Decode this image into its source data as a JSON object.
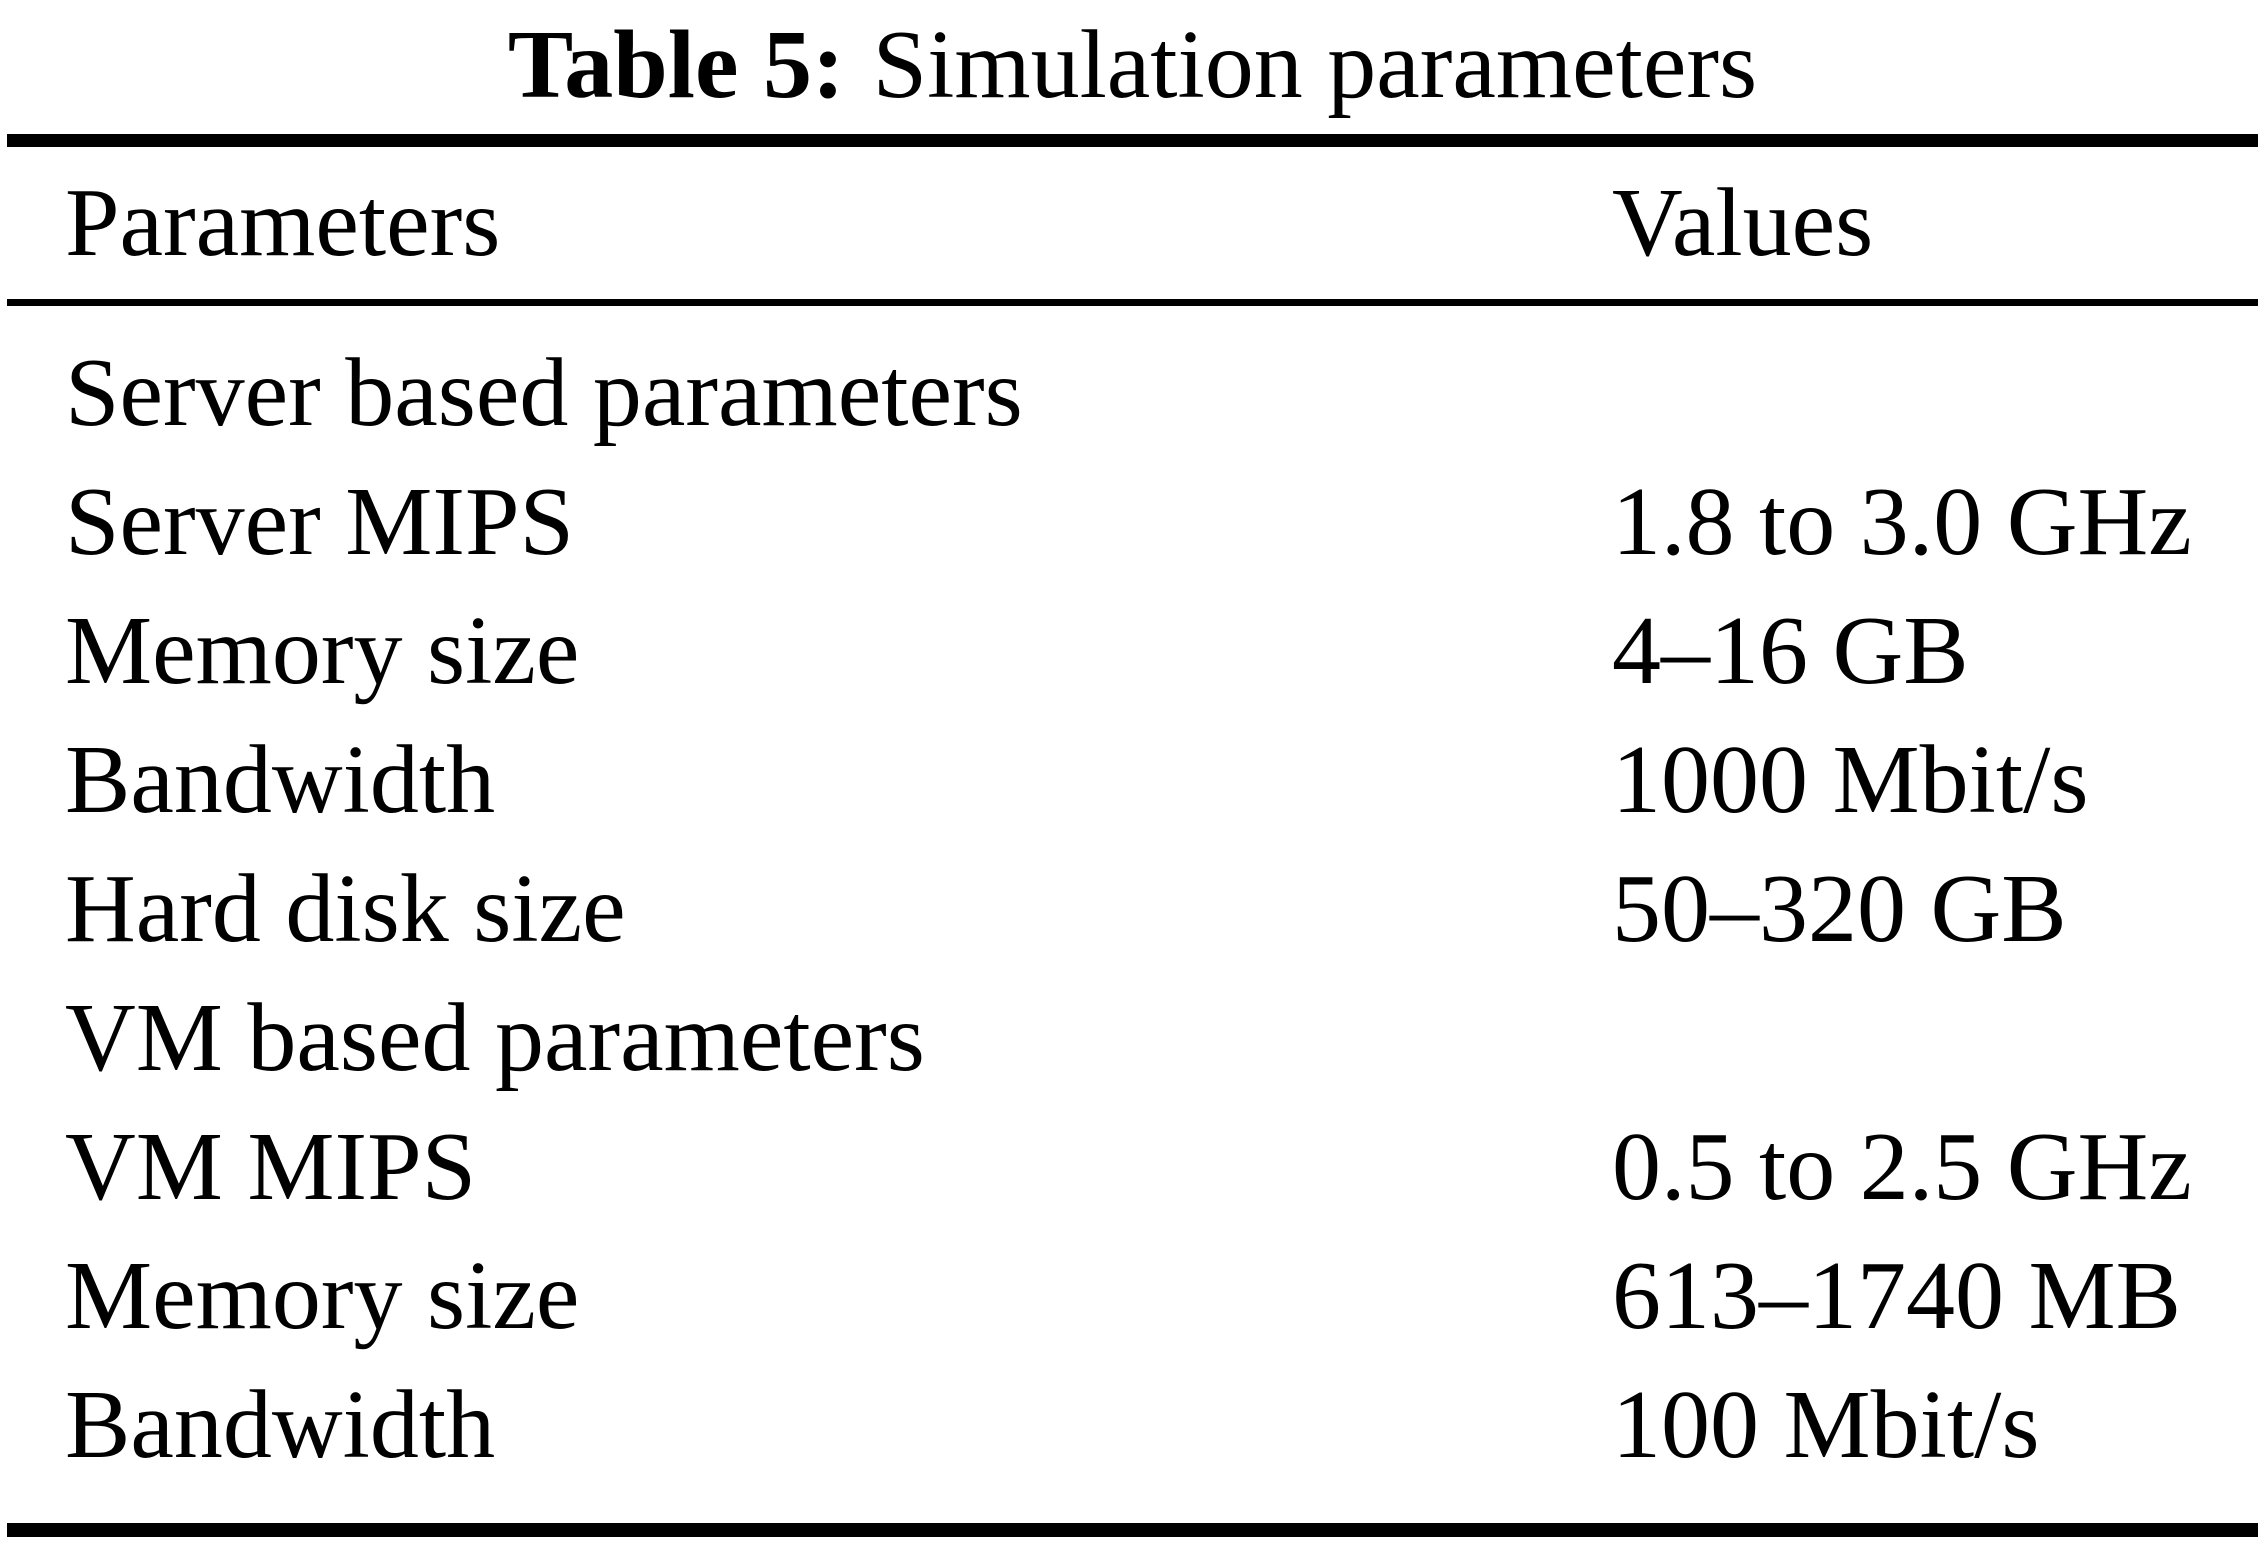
{
  "table": {
    "caption": {
      "label": "Table 5:",
      "text": "Simulation parameters"
    },
    "header": {
      "parameters": "Parameters",
      "values": "Values"
    },
    "rows": [
      {
        "parameter": "Server based parameters",
        "value": ""
      },
      {
        "parameter": "Server MIPS",
        "value": "1.8 to 3.0 GHz"
      },
      {
        "parameter": "Memory size",
        "value": "4–16 GB"
      },
      {
        "parameter": "Bandwidth",
        "value": "1000 Mbit/s"
      },
      {
        "parameter": "Hard disk size",
        "value": "50–320 GB"
      },
      {
        "parameter": "VM based parameters",
        "value": ""
      },
      {
        "parameter": "VM MIPS",
        "value": "0.5 to 2.5 GHz"
      },
      {
        "parameter": "Memory size",
        "value": "613–1740 MB"
      },
      {
        "parameter": "Bandwidth",
        "value": "100 Mbit/s"
      }
    ]
  }
}
